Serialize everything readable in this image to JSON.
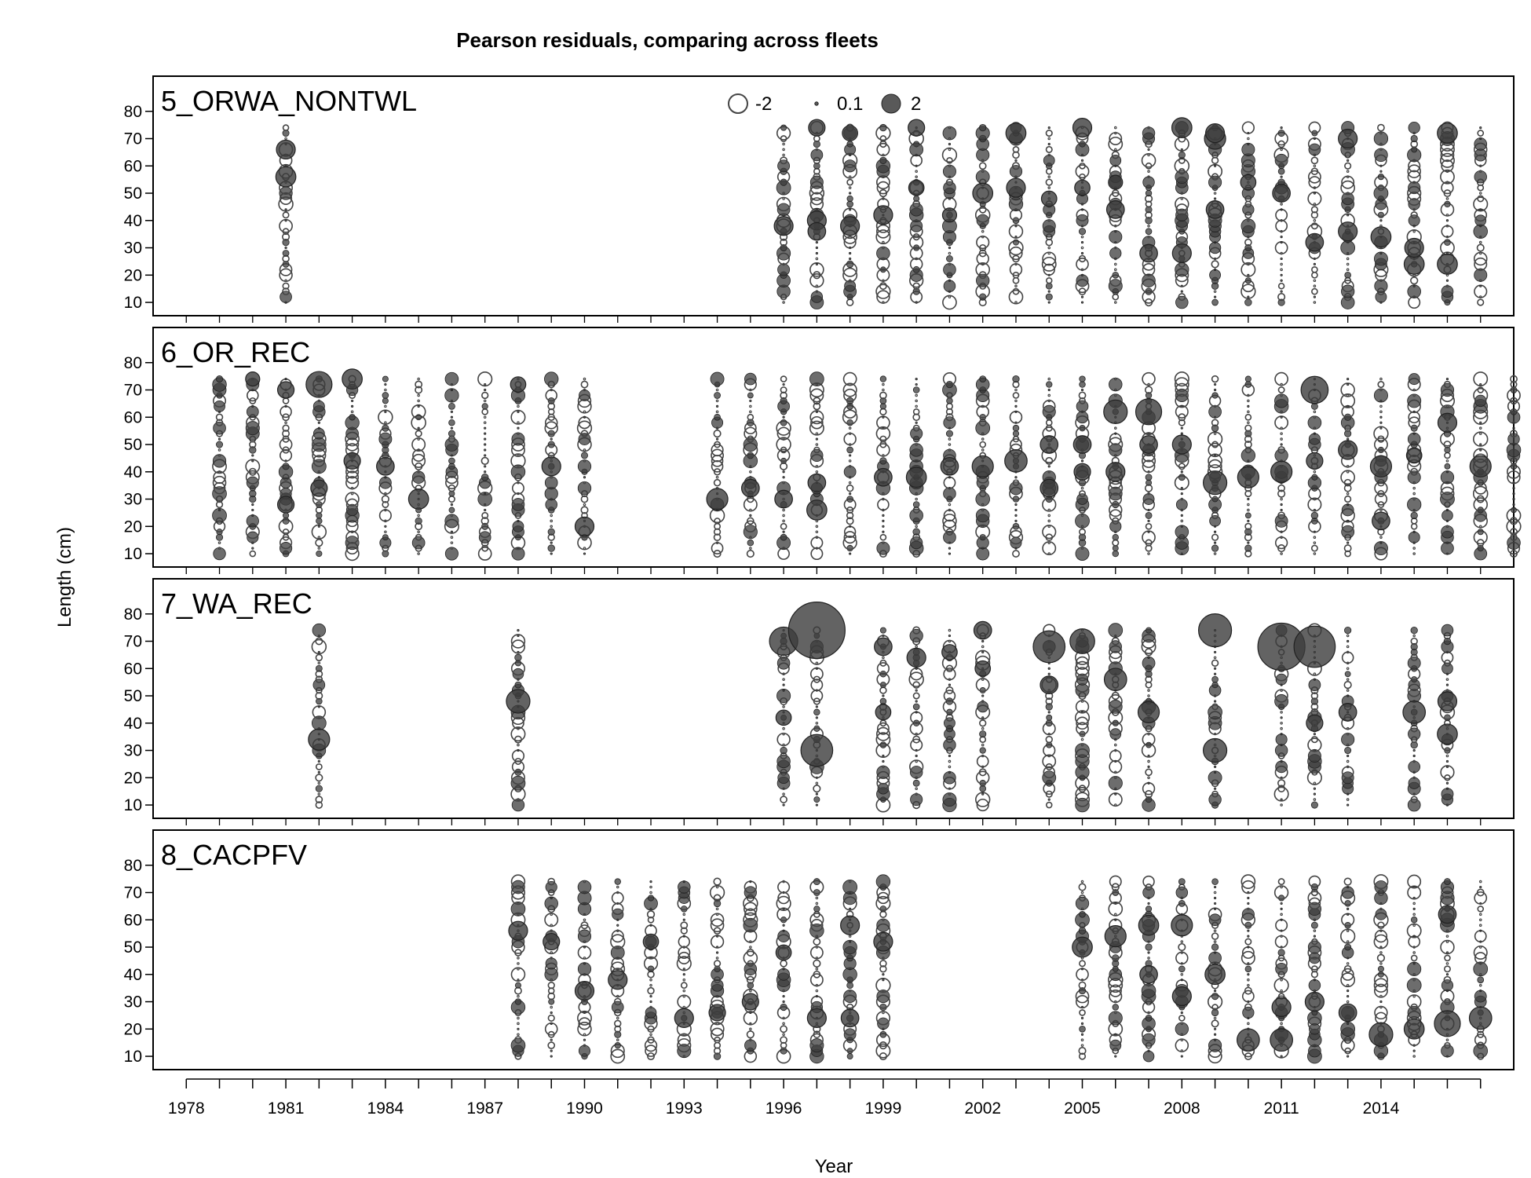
{
  "chart_data": {
    "type": "bubble",
    "title": "Pearson residuals,  comparing across fleets",
    "xlabel": "Year",
    "ylabel": "Length (cm)",
    "xlim": [
      1977,
      2018
    ],
    "ylim": [
      8,
      90
    ],
    "x_tick_labels": [
      "1978",
      "1981",
      "1984",
      "1987",
      "1990",
      "1993",
      "1996",
      "1999",
      "2002",
      "2005",
      "2008",
      "2011",
      "2014"
    ],
    "y_tick_labels": [
      "10",
      "20",
      "30",
      "40",
      "50",
      "60",
      "70",
      "80"
    ],
    "legend": [
      {
        "label": "-2",
        "value": -2
      },
      {
        "label": "0.1",
        "value": 0.1
      },
      {
        "label": "2",
        "value": 2
      }
    ],
    "colors": {
      "positive_fill": "#3c3c3c",
      "negative_stroke": "#444444",
      "frame": "#000000"
    },
    "length_bins": {
      "min": 10,
      "max": 74,
      "step": 2
    },
    "panels": [
      {
        "name": "5_ORWA_NONTWL",
        "years": [
          1981,
          1996,
          1997,
          1998,
          1999,
          2000,
          2001,
          2002,
          2003,
          2004,
          2005,
          2006,
          2007,
          2008,
          2009,
          2010,
          2011,
          2012,
          2013,
          2014,
          2015,
          2016,
          2017
        ],
        "highlights": [
          {
            "year": 1981,
            "len": 66,
            "r": 1.6
          },
          {
            "year": 1981,
            "len": 56,
            "r": 1.7
          },
          {
            "year": 1996,
            "len": 38,
            "r": 1.6
          },
          {
            "year": 1997,
            "len": 74,
            "r": 1.4
          },
          {
            "year": 1997,
            "len": 40,
            "r": 1.6
          },
          {
            "year": 1997,
            "len": 36,
            "r": 1.5
          },
          {
            "year": 1998,
            "len": 72,
            "r": 1.3
          },
          {
            "year": 1998,
            "len": 38,
            "r": 1.6
          },
          {
            "year": 1999,
            "len": 42,
            "r": 1.6
          },
          {
            "year": 2000,
            "len": 74,
            "r": 1.4
          },
          {
            "year": 2000,
            "len": 52,
            "r": 1.3
          },
          {
            "year": 2001,
            "len": 42,
            "r": 1.2
          },
          {
            "year": 2002,
            "len": 50,
            "r": 1.7
          },
          {
            "year": 2003,
            "len": 72,
            "r": 1.7
          },
          {
            "year": 2003,
            "len": 52,
            "r": 1.6
          },
          {
            "year": 2004,
            "len": 48,
            "r": 1.3
          },
          {
            "year": 2005,
            "len": 74,
            "r": 1.6
          },
          {
            "year": 2005,
            "len": 52,
            "r": 1.3
          },
          {
            "year": 2006,
            "len": 44,
            "r": 1.5
          },
          {
            "year": 2006,
            "len": 54,
            "r": 1.2
          },
          {
            "year": 2007,
            "len": 28,
            "r": 1.5
          },
          {
            "year": 2008,
            "len": 74,
            "r": 1.7
          },
          {
            "year": 2008,
            "len": 28,
            "r": 1.6
          },
          {
            "year": 2009,
            "len": 70,
            "r": 1.8
          },
          {
            "year": 2009,
            "len": 72,
            "r": 1.6
          },
          {
            "year": 2009,
            "len": 44,
            "r": 1.5
          },
          {
            "year": 2010,
            "len": 54,
            "r": 1.3
          },
          {
            "year": 2011,
            "len": 50,
            "r": 1.5
          },
          {
            "year": 2012,
            "len": 32,
            "r": 1.5
          },
          {
            "year": 2013,
            "len": 70,
            "r": 1.6
          },
          {
            "year": 2013,
            "len": 36,
            "r": 1.6
          },
          {
            "year": 2014,
            "len": 34,
            "r": 1.7
          },
          {
            "year": 2015,
            "len": 24,
            "r": 1.7
          },
          {
            "year": 2015,
            "len": 30,
            "r": 1.6
          },
          {
            "year": 2016,
            "len": 72,
            "r": 1.7
          },
          {
            "year": 2016,
            "len": 24,
            "r": 1.7
          }
        ]
      },
      {
        "name": "6_OR_REC",
        "years": [
          1979,
          1980,
          1981,
          1982,
          1983,
          1984,
          1985,
          1986,
          1987,
          1988,
          1989,
          1990,
          1994,
          1995,
          1996,
          1997,
          1998,
          1999,
          2000,
          2001,
          2002,
          2003,
          2004,
          2005,
          2006,
          2007,
          2008,
          2009,
          2010,
          2011,
          2012,
          2013,
          2014,
          2015,
          2016,
          2017,
          2018
        ],
        "highlights": [
          {
            "year": 1980,
            "len": 74,
            "r": 1.2
          },
          {
            "year": 1981,
            "len": 70,
            "r": 1.4
          },
          {
            "year": 1981,
            "len": 28,
            "r": 1.4
          },
          {
            "year": 1982,
            "len": 72,
            "r": 2.2
          },
          {
            "year": 1982,
            "len": 34,
            "r": 1.4
          },
          {
            "year": 1983,
            "len": 74,
            "r": 1.7
          },
          {
            "year": 1983,
            "len": 44,
            "r": 1.4
          },
          {
            "year": 1984,
            "len": 42,
            "r": 1.5
          },
          {
            "year": 1985,
            "len": 30,
            "r": 1.7
          },
          {
            "year": 1988,
            "len": 72,
            "r": 1.3
          },
          {
            "year": 1989,
            "len": 42,
            "r": 1.6
          },
          {
            "year": 1990,
            "len": 20,
            "r": 1.6
          },
          {
            "year": 1994,
            "len": 30,
            "r": 1.8
          },
          {
            "year": 1995,
            "len": 34,
            "r": 1.5
          },
          {
            "year": 1996,
            "len": 30,
            "r": 1.5
          },
          {
            "year": 1997,
            "len": 26,
            "r": 1.7
          },
          {
            "year": 1997,
            "len": 36,
            "r": 1.5
          },
          {
            "year": 1999,
            "len": 38,
            "r": 1.5
          },
          {
            "year": 2000,
            "len": 38,
            "r": 1.7
          },
          {
            "year": 2001,
            "len": 42,
            "r": 1.5
          },
          {
            "year": 2002,
            "len": 42,
            "r": 1.8
          },
          {
            "year": 2003,
            "len": 44,
            "r": 1.9
          },
          {
            "year": 2004,
            "len": 50,
            "r": 1.5
          },
          {
            "year": 2004,
            "len": 34,
            "r": 1.5
          },
          {
            "year": 2005,
            "len": 50,
            "r": 1.5
          },
          {
            "year": 2005,
            "len": 40,
            "r": 1.4
          },
          {
            "year": 2006,
            "len": 62,
            "r": 2.0
          },
          {
            "year": 2006,
            "len": 40,
            "r": 1.6
          },
          {
            "year": 2007,
            "len": 62,
            "r": 2.2
          },
          {
            "year": 2007,
            "len": 50,
            "r": 1.5
          },
          {
            "year": 2008,
            "len": 50,
            "r": 1.6
          },
          {
            "year": 2009,
            "len": 36,
            "r": 2.0
          },
          {
            "year": 2010,
            "len": 38,
            "r": 1.8
          },
          {
            "year": 2011,
            "len": 40,
            "r": 1.8
          },
          {
            "year": 2012,
            "len": 70,
            "r": 2.3
          },
          {
            "year": 2012,
            "len": 44,
            "r": 1.4
          },
          {
            "year": 2013,
            "len": 48,
            "r": 1.6
          },
          {
            "year": 2014,
            "len": 42,
            "r": 1.8
          },
          {
            "year": 2014,
            "len": 22,
            "r": 1.5
          },
          {
            "year": 2015,
            "len": 46,
            "r": 1.3
          },
          {
            "year": 2016,
            "len": 58,
            "r": 1.6
          },
          {
            "year": 2017,
            "len": 42,
            "r": 1.8
          }
        ]
      },
      {
        "name": "7_WA_REC",
        "years": [
          1982,
          1988,
          1996,
          1997,
          1999,
          2000,
          2001,
          2002,
          2004,
          2005,
          2006,
          2007,
          2009,
          2011,
          2012,
          2013,
          2015,
          2016
        ],
        "highlights": [
          {
            "year": 1982,
            "len": 34,
            "r": 1.8
          },
          {
            "year": 1988,
            "len": 48,
            "r": 2.0
          },
          {
            "year": 1996,
            "len": 70,
            "r": 2.4
          },
          {
            "year": 1996,
            "len": 42,
            "r": 1.3
          },
          {
            "year": 1997,
            "len": 74,
            "r": 4.8
          },
          {
            "year": 1997,
            "len": 30,
            "r": 2.7
          },
          {
            "year": 1999,
            "len": 68,
            "r": 1.5
          },
          {
            "year": 1999,
            "len": 44,
            "r": 1.3
          },
          {
            "year": 2000,
            "len": 64,
            "r": 1.6
          },
          {
            "year": 2001,
            "len": 66,
            "r": 1.3
          },
          {
            "year": 2002,
            "len": 74,
            "r": 1.5
          },
          {
            "year": 2002,
            "len": 60,
            "r": 1.3
          },
          {
            "year": 2004,
            "len": 68,
            "r": 2.7
          },
          {
            "year": 2004,
            "len": 54,
            "r": 1.5
          },
          {
            "year": 2005,
            "len": 70,
            "r": 2.1
          },
          {
            "year": 2006,
            "len": 56,
            "r": 1.9
          },
          {
            "year": 2007,
            "len": 44,
            "r": 1.8
          },
          {
            "year": 2009,
            "len": 74,
            "r": 2.8
          },
          {
            "year": 2009,
            "len": 30,
            "r": 2.0
          },
          {
            "year": 2011,
            "len": 68,
            "r": 4.0
          },
          {
            "year": 2012,
            "len": 68,
            "r": 3.5
          },
          {
            "year": 2012,
            "len": 40,
            "r": 1.4
          },
          {
            "year": 2013,
            "len": 44,
            "r": 1.5
          },
          {
            "year": 2015,
            "len": 44,
            "r": 1.9
          },
          {
            "year": 2016,
            "len": 48,
            "r": 1.6
          },
          {
            "year": 2016,
            "len": 36,
            "r": 1.7
          }
        ]
      },
      {
        "name": "8_CACPFV",
        "years": [
          1988,
          1989,
          1990,
          1991,
          1992,
          1993,
          1994,
          1995,
          1996,
          1997,
          1998,
          1999,
          2005,
          2006,
          2007,
          2008,
          2009,
          2010,
          2011,
          2012,
          2013,
          2014,
          2015,
          2016,
          2017
        ],
        "highlights": [
          {
            "year": 1988,
            "len": 56,
            "r": 1.6
          },
          {
            "year": 1989,
            "len": 52,
            "r": 1.4
          },
          {
            "year": 1990,
            "len": 34,
            "r": 1.6
          },
          {
            "year": 1991,
            "len": 38,
            "r": 1.6
          },
          {
            "year": 1992,
            "len": 52,
            "r": 1.3
          },
          {
            "year": 1993,
            "len": 24,
            "r": 1.6
          },
          {
            "year": 1994,
            "len": 26,
            "r": 1.4
          },
          {
            "year": 1995,
            "len": 30,
            "r": 1.4
          },
          {
            "year": 1996,
            "len": 48,
            "r": 1.3
          },
          {
            "year": 1997,
            "len": 24,
            "r": 1.6
          },
          {
            "year": 1998,
            "len": 58,
            "r": 1.6
          },
          {
            "year": 1998,
            "len": 24,
            "r": 1.5
          },
          {
            "year": 1999,
            "len": 52,
            "r": 1.6
          },
          {
            "year": 2005,
            "len": 50,
            "r": 1.7
          },
          {
            "year": 2006,
            "len": 54,
            "r": 1.8
          },
          {
            "year": 2007,
            "len": 58,
            "r": 1.7
          },
          {
            "year": 2007,
            "len": 40,
            "r": 1.5
          },
          {
            "year": 2008,
            "len": 58,
            "r": 1.8
          },
          {
            "year": 2008,
            "len": 32,
            "r": 1.6
          },
          {
            "year": 2009,
            "len": 40,
            "r": 1.7
          },
          {
            "year": 2010,
            "len": 16,
            "r": 1.9
          },
          {
            "year": 2011,
            "len": 16,
            "r": 1.9
          },
          {
            "year": 2011,
            "len": 28,
            "r": 1.6
          },
          {
            "year": 2012,
            "len": 30,
            "r": 1.6
          },
          {
            "year": 2013,
            "len": 26,
            "r": 1.5
          },
          {
            "year": 2014,
            "len": 18,
            "r": 2.0
          },
          {
            "year": 2015,
            "len": 20,
            "r": 1.7
          },
          {
            "year": 2016,
            "len": 22,
            "r": 2.2
          },
          {
            "year": 2016,
            "len": 62,
            "r": 1.5
          },
          {
            "year": 2017,
            "len": 24,
            "r": 1.9
          }
        ]
      }
    ]
  }
}
